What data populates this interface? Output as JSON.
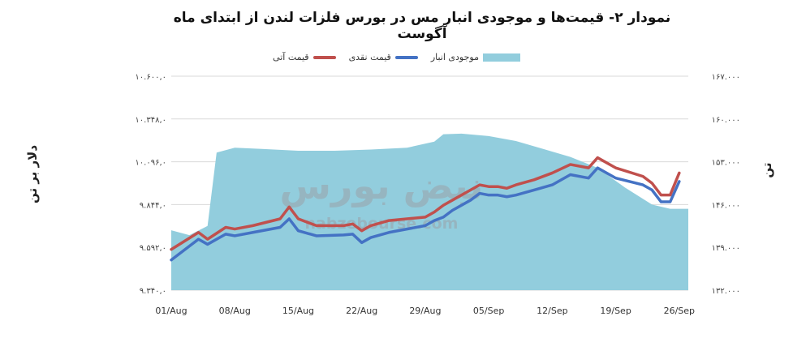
{
  "chart_data": {
    "type": "line",
    "title": "نمودار ۲- قیمت‌ها و موجودی انبار مس در بورس فلزات لندن از ابتدای ماه آگوست",
    "ylabel_left": "دلار بر تن",
    "ylabel_right": "تن",
    "x_ticks": [
      "01/Aug",
      "08/Aug",
      "15/Aug",
      "22/Aug",
      "29/Aug",
      "05/Sep",
      "12/Sep",
      "19/Sep",
      "26/Sep"
    ],
    "y_left_ticks": [
      "۹.۳۴۰,۰",
      "۹.۵۹۲,۰",
      "۹.۸۴۴,۰",
      "۱۰.۰۹۶,۰",
      "۱۰.۳۴۸,۰",
      "۱۰.۶۰۰,۰"
    ],
    "y_right_ticks": [
      "۱۳۲.۰۰۰",
      "۱۳۹.۰۰۰",
      "۱۴۶.۰۰۰",
      "۱۵۳.۰۰۰",
      "۱۶۰.۰۰۰",
      "۱۶۷.۰۰۰"
    ],
    "ylim_left": [
      9340,
      10600
    ],
    "ylim_right": [
      132000,
      167000
    ],
    "x_range": [
      0,
      57
    ],
    "grid": true,
    "legend_position": "top",
    "series": [
      {
        "name": "موجودی انبار",
        "kind": "area",
        "axis": "right",
        "color": "#92cddd",
        "x": [
          0,
          2,
          4,
          5,
          7,
          10,
          14,
          18,
          22,
          26,
          29,
          30,
          32,
          35,
          38,
          41,
          44,
          47,
          50,
          53,
          55,
          57
        ],
        "values": [
          141800,
          141000,
          142500,
          154500,
          155300,
          155100,
          154800,
          154800,
          155000,
          155300,
          156300,
          157500,
          157600,
          157200,
          156400,
          155100,
          153800,
          152000,
          148800,
          146000,
          145300,
          145300
        ]
      },
      {
        "name": "قیمت نقدی",
        "kind": "line",
        "axis": "left",
        "color": "#4472c4",
        "x": [
          0,
          3,
          4,
          6,
          7,
          9,
          12,
          13,
          14,
          16,
          19,
          20,
          21,
          22,
          24,
          28,
          29,
          30,
          31,
          33,
          34,
          35,
          36,
          37,
          38,
          40,
          42,
          44,
          46,
          47,
          49,
          52,
          53,
          54,
          55,
          56
        ],
        "values": [
          9518,
          9640,
          9610,
          9670,
          9660,
          9680,
          9710,
          9760,
          9690,
          9660,
          9665,
          9670,
          9620,
          9650,
          9680,
          9720,
          9750,
          9770,
          9810,
          9870,
          9910,
          9900,
          9900,
          9890,
          9900,
          9930,
          9960,
          10020,
          10000,
          10060,
          10000,
          9960,
          9930,
          9860,
          9860,
          9980
        ]
      },
      {
        "name": "قیمت آتی",
        "kind": "line",
        "axis": "left",
        "color": "#c0504d",
        "x": [
          0,
          3,
          4,
          6,
          7,
          9,
          12,
          13,
          14,
          16,
          19,
          20,
          21,
          22,
          24,
          28,
          29,
          30,
          31,
          33,
          34,
          35,
          36,
          37,
          38,
          40,
          42,
          44,
          46,
          47,
          49,
          52,
          53,
          54,
          55,
          56
        ],
        "values": [
          9580,
          9680,
          9640,
          9710,
          9700,
          9720,
          9760,
          9830,
          9760,
          9720,
          9720,
          9730,
          9690,
          9720,
          9750,
          9770,
          9800,
          9840,
          9870,
          9930,
          9960,
          9950,
          9950,
          9940,
          9960,
          9990,
          10030,
          10080,
          10060,
          10120,
          10060,
          10010,
          9970,
          9900,
          9900,
          10030
        ]
      }
    ]
  },
  "watermark": {
    "brand": "نبض بورس",
    "url": "nabzebourse.com"
  }
}
